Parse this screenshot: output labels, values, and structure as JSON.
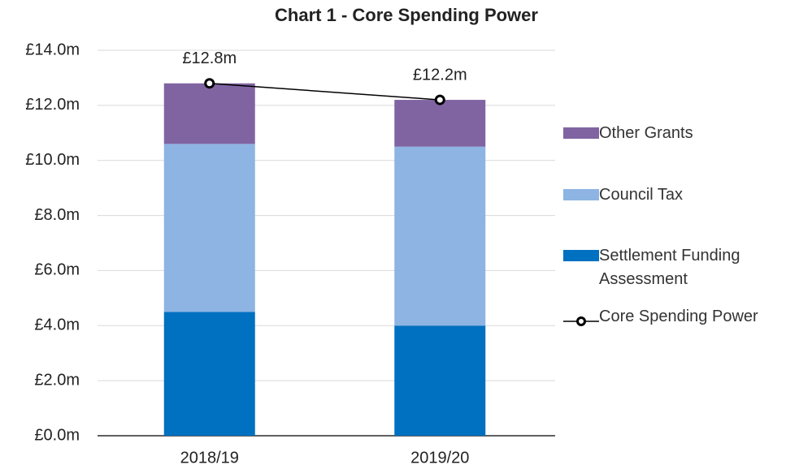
{
  "chart_data": {
    "type": "bar",
    "stacked": true,
    "title": "Chart 1 - Core Spending Power",
    "categories": [
      "2018/19",
      "2019/20"
    ],
    "series": [
      {
        "name": "Settlement Funding Assessment",
        "color": "#0070c0",
        "values": [
          4.5,
          4.0
        ]
      },
      {
        "name": "Council Tax",
        "color": "#8db4e2",
        "values": [
          6.1,
          6.5
        ]
      },
      {
        "name": "Other Grants",
        "color": "#8064a2",
        "values": [
          2.2,
          1.7
        ]
      },
      {
        "name": "Core Spending Power",
        "type": "line",
        "color": "#000000",
        "values": [
          12.8,
          12.2
        ],
        "value_labels": [
          "£12.8m",
          "£12.2m"
        ]
      }
    ],
    "ylim": [
      0,
      14
    ],
    "yticks": [
      {
        "value": 0,
        "label": "£0.0m"
      },
      {
        "value": 2,
        "label": "£2.0m"
      },
      {
        "value": 4,
        "label": "£4.0m"
      },
      {
        "value": 6,
        "label": "£6.0m"
      },
      {
        "value": 8,
        "label": "£8.0m"
      },
      {
        "value": 10,
        "label": "£10.0m"
      },
      {
        "value": 12,
        "label": "£12.0m"
      },
      {
        "value": 14,
        "label": "£14.0m"
      }
    ],
    "grid": true,
    "legend": "right"
  }
}
